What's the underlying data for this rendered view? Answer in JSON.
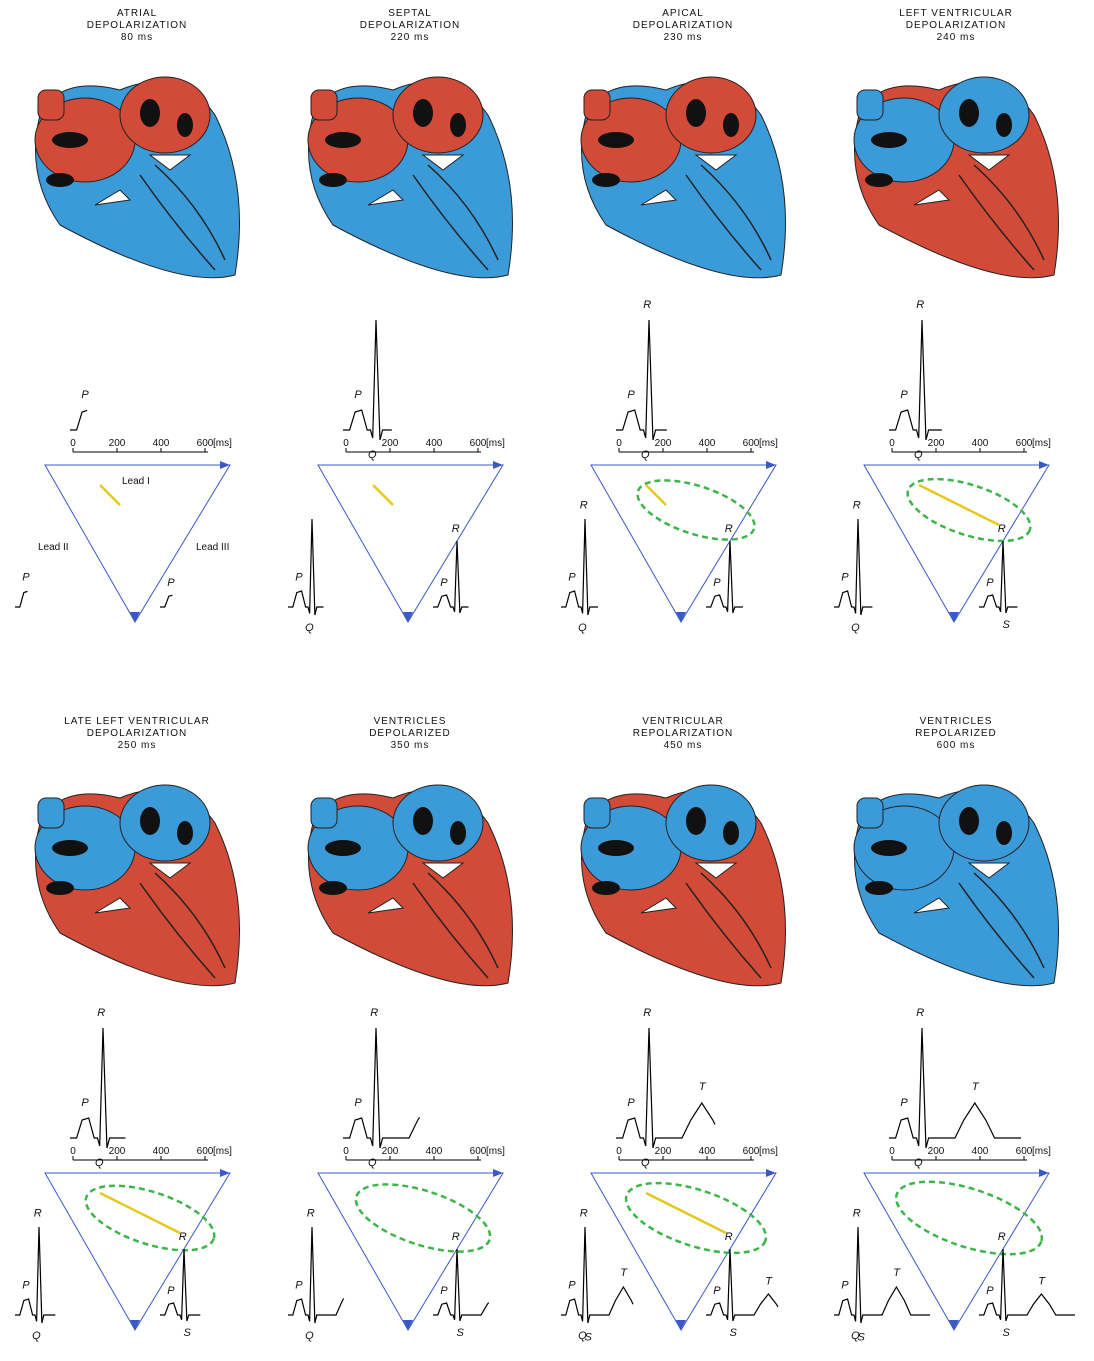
{
  "panels": [
    {
      "title": [
        "ATRIAL",
        "DEPOLARIZATION",
        "80 ms"
      ],
      "lead_i": [
        "P"
      ],
      "lead_ii": [
        "P"
      ],
      "lead_iii": [
        "P"
      ]
    },
    {
      "title": [
        "SEPTAL",
        "DEPOLARIZATION",
        "220 ms"
      ],
      "lead_i": [
        "P",
        "Q"
      ],
      "lead_ii": [
        "P",
        "Q"
      ],
      "lead_iii": [
        "P",
        "R"
      ]
    },
    {
      "title": [
        "APICAL",
        "DEPOLARIZATION",
        "230 ms"
      ],
      "lead_i": [
        "P",
        "R",
        "Q"
      ],
      "lead_ii": [
        "R",
        "P",
        "Q"
      ],
      "lead_iii": [
        "P",
        "R"
      ]
    },
    {
      "title": [
        "LEFT VENTRICULAR",
        "DEPOLARIZATION",
        "240 ms"
      ],
      "lead_i": [
        "R",
        "P",
        "Q"
      ],
      "lead_ii": [
        "R",
        "P",
        "Q"
      ],
      "lead_iii": [
        "R",
        "P",
        "S"
      ]
    },
    {
      "title": [
        "LATE LEFT VENTRICULAR",
        "DEPOLARIZATION",
        "250 ms"
      ],
      "lead_i": [
        "R",
        "P",
        "Q"
      ],
      "lead_ii": [
        "R",
        "P",
        "Q"
      ],
      "lead_iii": [
        "R",
        "P",
        "S"
      ]
    },
    {
      "title": [
        "VENTRICLES",
        "DEPOLARIZED",
        "350 ms"
      ],
      "lead_i": [
        "R",
        "P",
        "Q"
      ],
      "lead_ii": [
        "R",
        "P",
        "Q"
      ],
      "lead_iii": [
        "R",
        "P",
        "S"
      ]
    },
    {
      "title": [
        "VENTRICULAR",
        "REPOLARIZATION",
        "450 ms"
      ],
      "lead_i": [
        "R",
        "T",
        "P",
        "Q"
      ],
      "lead_ii": [
        "R",
        "P",
        "Q",
        "S",
        "T"
      ],
      "lead_iii": [
        "R",
        "P",
        "S",
        "T"
      ]
    },
    {
      "title": [
        "VENTRICLES",
        "REPOLARIZED",
        "600 ms"
      ],
      "lead_i": [
        "R",
        "T",
        "P",
        "Q"
      ],
      "lead_ii": [
        "R",
        "P",
        "Q",
        "S",
        "T"
      ],
      "lead_iii": [
        "R",
        "P",
        "S",
        "T"
      ]
    }
  ],
  "axis": {
    "ticks": [
      0,
      200,
      400,
      600
    ],
    "unit": "[ms]"
  },
  "leads": [
    "Lead I",
    "Lead II",
    "Lead III"
  ]
}
